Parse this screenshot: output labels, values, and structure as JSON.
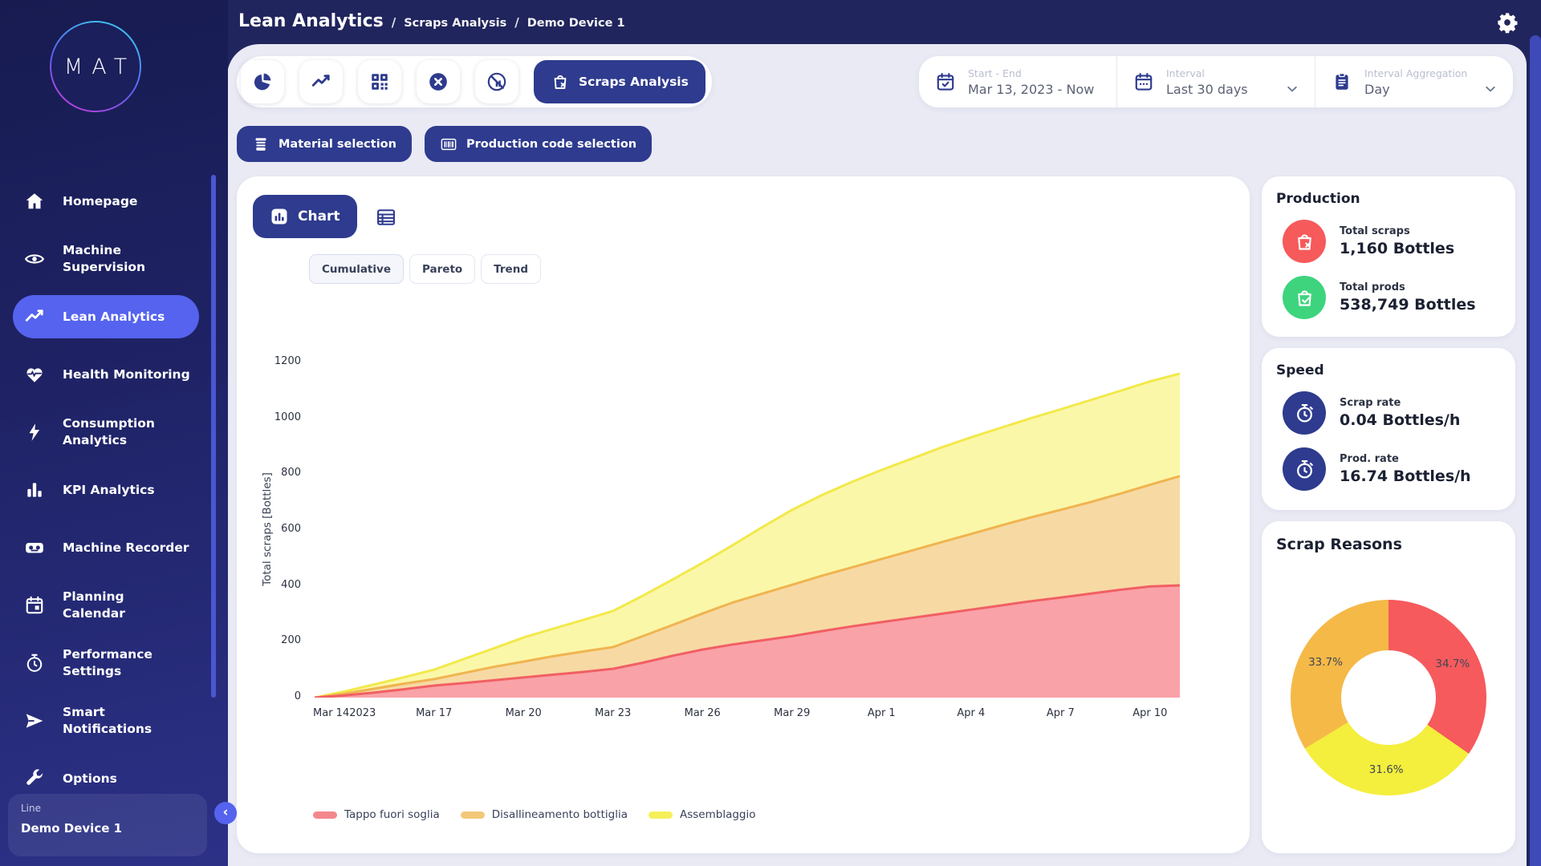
{
  "colors": {
    "navy": "#2e3b8e",
    "accent": "#5563ee",
    "topbar": "#21255d",
    "main_bg": "#e9eaf4",
    "red": "#f65a5b",
    "green": "#3ed47e"
  },
  "logo": {
    "text": "MAT"
  },
  "breadcrumb": {
    "title": "Lean Analytics",
    "separator": "/",
    "items": [
      "Scraps Analysis",
      "Demo Device 1"
    ]
  },
  "sidebar": {
    "items": [
      {
        "label": "Homepage",
        "icon": "home"
      },
      {
        "label": "Machine\nSupervision",
        "icon": "eye"
      },
      {
        "label": "Lean Analytics",
        "icon": "trend",
        "active": true
      },
      {
        "label": "Health Monitoring",
        "icon": "heart-pulse"
      },
      {
        "label": "Consumption\nAnalytics",
        "icon": "bolt"
      },
      {
        "label": "KPI Analytics",
        "icon": "bar-chart"
      },
      {
        "label": "Machine Recorder",
        "icon": "recorder"
      },
      {
        "label": "Planning\nCalendar",
        "icon": "calendar"
      },
      {
        "label": "Performance\nSettings",
        "icon": "gauge"
      },
      {
        "label": "Smart\nNotifications",
        "icon": "send"
      },
      {
        "label": "Options",
        "icon": "wrench"
      }
    ],
    "device_selector": {
      "label": "Line",
      "value": "Demo Device 1"
    }
  },
  "toolbar": {
    "tools": [
      {
        "name": "pie-analysis",
        "icon": "pie"
      },
      {
        "name": "trend-analysis",
        "icon": "trend"
      },
      {
        "name": "code-analysis",
        "icon": "qr"
      },
      {
        "name": "stops-analysis",
        "icon": "x-circle"
      },
      {
        "name": "downtime-analysis",
        "icon": "chart-slash"
      }
    ],
    "active_tool": {
      "label": "Scraps Analysis",
      "icon": "bag-x"
    },
    "filters": [
      {
        "label": "Start - End",
        "value": "Mar 13, 2023 - Now",
        "icon": "calendar-check",
        "dropdown": false
      },
      {
        "label": "Interval",
        "value": "Last 30 days",
        "icon": "calendar-dots",
        "dropdown": true
      },
      {
        "label": "Interval Aggregation",
        "value": "Day",
        "icon": "clipboard",
        "dropdown": true
      }
    ]
  },
  "selection_buttons": [
    {
      "label": "Material selection",
      "icon": "material"
    },
    {
      "label": "Production code selection",
      "icon": "barcode"
    }
  ],
  "chart_card": {
    "chart_button": "Chart",
    "chart_button_icon": "chart-bars",
    "table_icon": "table",
    "tabs": [
      "Cumulative",
      "Pareto",
      "Trend"
    ],
    "active_tab": "Cumulative"
  },
  "chart_data": {
    "type": "area",
    "stacked": true,
    "title": "",
    "xlabel": "",
    "ylabel": "Total scraps [Bottles]",
    "ylim": [
      0,
      1200
    ],
    "yticks": [
      0,
      200,
      400,
      600,
      800,
      1000,
      1200
    ],
    "grid": false,
    "legend_position": "bottom",
    "x": [
      "Mar 13",
      "Mar 14",
      "Mar 15",
      "Mar 16",
      "Mar 17",
      "Mar 18",
      "Mar 19",
      "Mar 20",
      "Mar 21",
      "Mar 22",
      "Mar 23",
      "Mar 24",
      "Mar 25",
      "Mar 26",
      "Mar 27",
      "Mar 28",
      "Mar 29",
      "Mar 30",
      "Mar 31",
      "Apr 1",
      "Apr 2",
      "Apr 3",
      "Apr 4",
      "Apr 5",
      "Apr 6",
      "Apr 7",
      "Apr 8",
      "Apr 9",
      "Apr 10",
      "Apr 11"
    ],
    "x_ticks": [
      {
        "index": 1,
        "label": "Mar 14",
        "sub": "2023"
      },
      {
        "index": 4,
        "label": "Mar 17"
      },
      {
        "index": 7,
        "label": "Mar 20"
      },
      {
        "index": 10,
        "label": "Mar 23"
      },
      {
        "index": 13,
        "label": "Mar 26"
      },
      {
        "index": 16,
        "label": "Mar 29"
      },
      {
        "index": 19,
        "label": "Apr 1"
      },
      {
        "index": 22,
        "label": "Apr 4"
      },
      {
        "index": 25,
        "label": "Apr 7"
      },
      {
        "index": 28,
        "label": "Apr 10"
      }
    ],
    "series": [
      {
        "name": "Tappo fuori soglia",
        "color_line": "#f15f63",
        "color_fill": "#f9a2a8",
        "legend_swatch": "#f4878c",
        "values_cumulative": [
          0,
          8,
          18,
          30,
          43,
          52,
          62,
          72,
          82,
          92,
          103,
          125,
          150,
          172,
          190,
          205,
          220,
          238,
          255,
          270,
          285,
          300,
          315,
          330,
          345,
          358,
          372,
          386,
          398,
          402
        ]
      },
      {
        "name": "Disallineamento bottiglia",
        "color_line": "#f0b450",
        "color_fill": "#f7d9a4",
        "legend_swatch": "#f2c879",
        "values_cumulative": [
          0,
          14,
          32,
          50,
          66,
          88,
          110,
          129,
          148,
          165,
          181,
          220,
          260,
          301,
          340,
          372,
          404,
          436,
          466,
          496,
          526,
          556,
          586,
          616,
          645,
          672,
          700,
          730,
          762,
          793
        ]
      },
      {
        "name": "Assemblaggio",
        "color_line": "#f2e94a",
        "color_fill": "#fbf7a8",
        "legend_swatch": "#f5ef5a",
        "values_cumulative": [
          0,
          22,
          47,
          73,
          100,
          138,
          176,
          215,
          247,
          278,
          310,
          365,
          423,
          482,
          545,
          610,
          672,
          725,
          772,
          815,
          855,
          895,
          932,
          966,
          1000,
          1032,
          1065,
          1098,
          1132,
          1160
        ]
      }
    ]
  },
  "production": {
    "title": "Production",
    "stats": [
      {
        "label": "Total scraps",
        "value": "1,160 Bottles",
        "icon": "bag-x",
        "circle_color": "#f65a5b"
      },
      {
        "label": "Total prods",
        "value": "538,749 Bottles",
        "icon": "bag-check",
        "circle_color": "#3ed47e"
      }
    ]
  },
  "speed": {
    "title": "Speed",
    "stats": [
      {
        "label": "Scrap rate",
        "value": "0.04 Bottles/h",
        "icon": "stopwatch",
        "circle_color": "#2e3b8e"
      },
      {
        "label": "Prod. rate",
        "value": "16.74 Bottles/h",
        "icon": "stopwatch",
        "circle_color": "#2e3b8e"
      }
    ]
  },
  "scrap_reasons": {
    "title": "Scrap Reasons",
    "chart_data": {
      "type": "donut",
      "slices": [
        {
          "label": "Tappo fuori soglia",
          "percent": 34.7,
          "display": "34.7%",
          "color": "#f65a5c"
        },
        {
          "label": "Assemblaggio",
          "percent": 31.6,
          "display": "31.6%",
          "color": "#f4ee3d"
        },
        {
          "label": "Disallineamento bottiglia",
          "percent": 33.7,
          "display": "33.7%",
          "color": "#f5b948"
        }
      ]
    }
  }
}
